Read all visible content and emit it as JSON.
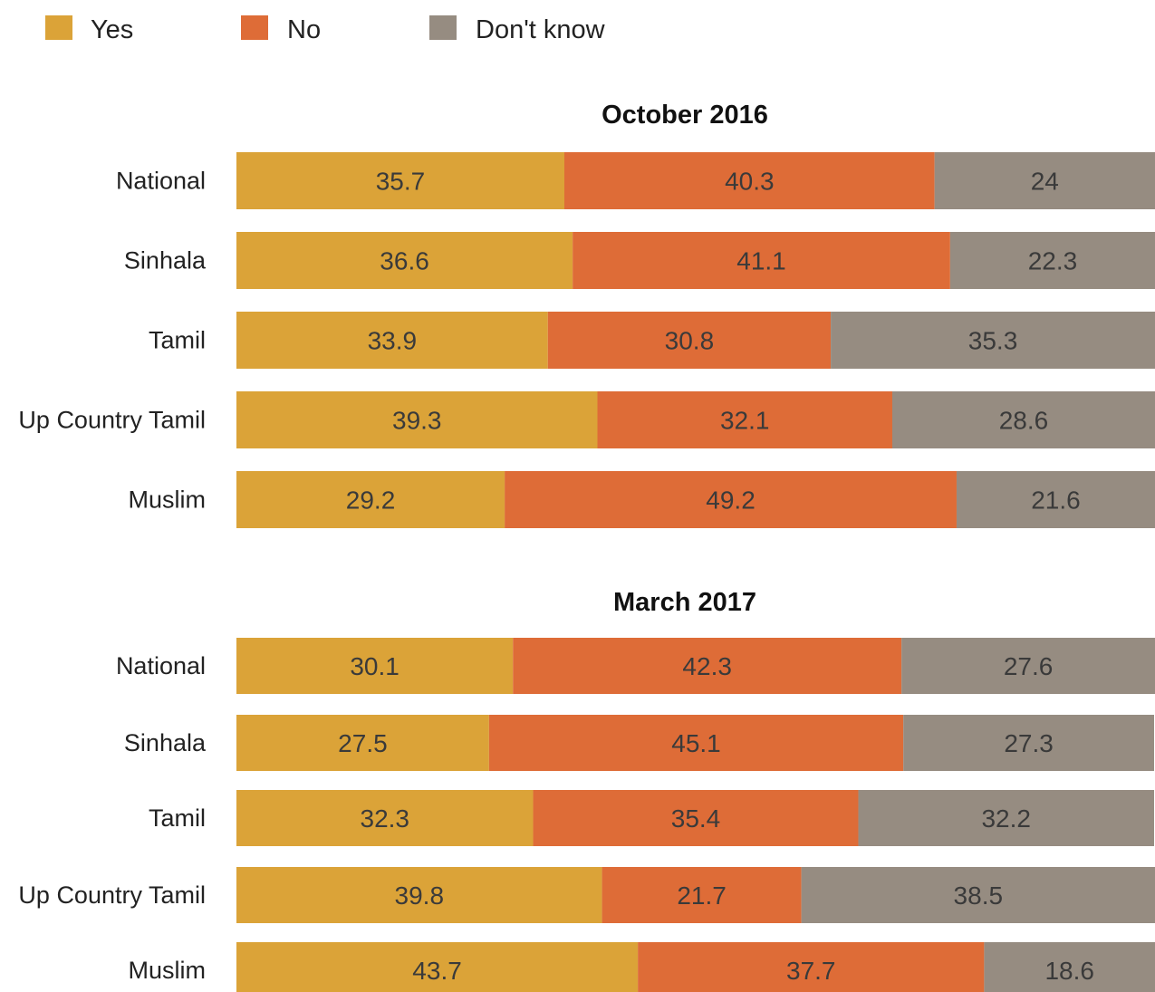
{
  "legend": {
    "items": [
      {
        "name": "Yes",
        "color": "#DBA338"
      },
      {
        "name": "No",
        "color": "#DE6C37"
      },
      {
        "name": "Don't know",
        "color": "#968C81"
      }
    ]
  },
  "chart_data": [
    {
      "type": "bar",
      "orientation": "horizontal",
      "stacked": true,
      "title": "October 2016",
      "categories": [
        "National",
        "Sinhala",
        "Tamil",
        "Up Country Tamil",
        "Muslim"
      ],
      "series": [
        {
          "name": "Yes",
          "values": [
            35.7,
            36.6,
            33.9,
            39.3,
            29.2
          ]
        },
        {
          "name": "No",
          "values": [
            40.3,
            41.1,
            30.8,
            32.1,
            49.2
          ]
        },
        {
          "name": "Don't know",
          "values": [
            24,
            22.3,
            35.3,
            28.6,
            21.6
          ]
        }
      ],
      "xlim": [
        0,
        100
      ],
      "grid": false,
      "legend_position": "top-left"
    },
    {
      "type": "bar",
      "orientation": "horizontal",
      "stacked": true,
      "title": "March 2017",
      "categories": [
        "National",
        "Sinhala",
        "Tamil",
        "Up Country Tamil",
        "Muslim"
      ],
      "series": [
        {
          "name": "Yes",
          "values": [
            30.1,
            27.5,
            32.3,
            39.8,
            43.7
          ]
        },
        {
          "name": "No",
          "values": [
            42.3,
            45.1,
            35.4,
            21.7,
            37.7
          ]
        },
        {
          "name": "Don't know",
          "values": [
            27.6,
            27.3,
            32.2,
            38.5,
            18.6
          ]
        }
      ],
      "xlim": [
        0,
        100
      ],
      "grid": false,
      "legend_position": "top-left"
    }
  ]
}
